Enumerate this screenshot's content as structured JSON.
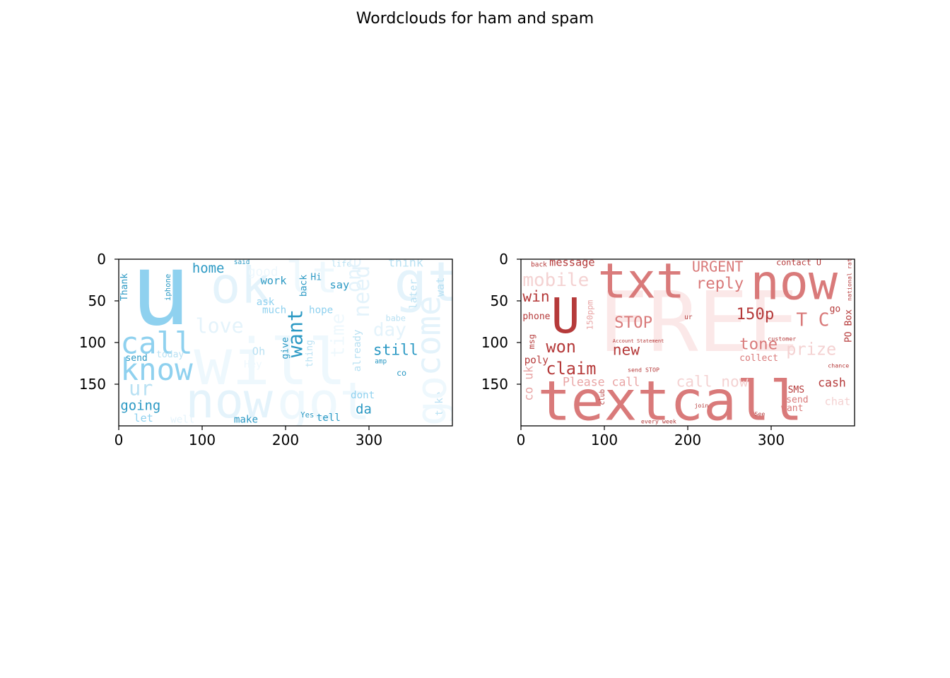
{
  "figure": {
    "title": "Wordclouds for ham and spam"
  },
  "chart_data": [
    {
      "type": "wordcloud-image",
      "name": "ham",
      "xlim": [
        0,
        400
      ],
      "ylim": [
        200,
        0
      ],
      "x_ticks": [
        0,
        100,
        200,
        300
      ],
      "y_ticks": [
        0,
        50,
        100,
        150
      ],
      "palette": [
        "#8fd1ef",
        "#5ab8dc",
        "#2b99c4",
        "#b9e1f3",
        "#e4f3fb"
      ],
      "words": [
        {
          "text": "u",
          "x": 14,
          "y": 78,
          "size": 120,
          "color": "#8fd1ef"
        },
        {
          "text": "ok",
          "x": 110,
          "y": 52,
          "size": 60,
          "color": "#e4f3fb"
        },
        {
          "text": "lt",
          "x": 200,
          "y": 40,
          "size": 52,
          "color": "#eef8fd"
        },
        {
          "text": "gt",
          "x": 330,
          "y": 50,
          "size": 66,
          "color": "#e4f3fb"
        },
        {
          "text": "call",
          "x": 2,
          "y": 113,
          "size": 36,
          "color": "#8fd1ef"
        },
        {
          "text": "know",
          "x": 2,
          "y": 145,
          "size": 36,
          "color": "#8fd1ef"
        },
        {
          "text": "ur",
          "x": 12,
          "y": 163,
          "size": 24,
          "color": "#b9e1f3"
        },
        {
          "text": "going",
          "x": 2,
          "y": 181,
          "size": 16,
          "color": "#2b99c4"
        },
        {
          "text": "let",
          "x": 18,
          "y": 195,
          "size": 13,
          "color": "#8fd1ef"
        },
        {
          "text": "will",
          "x": 90,
          "y": 150,
          "size": 76,
          "color": "#eef8fd"
        },
        {
          "text": "now",
          "x": 80,
          "y": 190,
          "size": 58,
          "color": "#e4f3fb"
        },
        {
          "text": "got",
          "x": 190,
          "y": 192,
          "size": 62,
          "color": "#eef8fd"
        },
        {
          "text": "home",
          "x": 88,
          "y": 16,
          "size": 16,
          "color": "#2b99c4"
        },
        {
          "text": "good",
          "x": 155,
          "y": 20,
          "size": 15,
          "color": "#eef8fd"
        },
        {
          "text": "work",
          "x": 170,
          "y": 30,
          "size": 13,
          "color": "#2b99c4"
        },
        {
          "text": "love",
          "x": 92,
          "y": 88,
          "size": 24,
          "color": "#e4f3fb"
        },
        {
          "text": "ask",
          "x": 165,
          "y": 55,
          "size": 12,
          "color": "#8fd1ef"
        },
        {
          "text": "much",
          "x": 172,
          "y": 65,
          "size": 12,
          "color": "#8fd1ef"
        },
        {
          "text": "hope",
          "x": 228,
          "y": 65,
          "size": 12,
          "color": "#8fd1ef"
        },
        {
          "text": "say",
          "x": 253,
          "y": 35,
          "size": 13,
          "color": "#2b99c4"
        },
        {
          "text": "Hi",
          "x": 230,
          "y": 25,
          "size": 11,
          "color": "#2b99c4"
        },
        {
          "text": "life",
          "x": 255,
          "y": 9,
          "size": 10,
          "color": "#b9e1f3"
        },
        {
          "text": "think",
          "x": 323,
          "y": 9,
          "size": 14,
          "color": "#b9e1f3"
        },
        {
          "text": "still",
          "x": 305,
          "y": 115,
          "size": 18,
          "color": "#2b99c4"
        },
        {
          "text": "day",
          "x": 305,
          "y": 92,
          "size": 22,
          "color": "#e4f3fb"
        },
        {
          "text": "babe",
          "x": 320,
          "y": 74,
          "size": 10,
          "color": "#b9e1f3"
        },
        {
          "text": "Oh",
          "x": 160,
          "y": 115,
          "size": 13,
          "color": "#b9e1f3"
        },
        {
          "text": "Hey",
          "x": 150,
          "y": 130,
          "size": 12,
          "color": "#eef8fd"
        },
        {
          "text": "send",
          "x": 8,
          "y": 122,
          "size": 11,
          "color": "#2b99c4"
        },
        {
          "text": "today",
          "x": 45,
          "y": 118,
          "size": 11,
          "color": "#b9e1f3"
        },
        {
          "text": "dont",
          "x": 278,
          "y": 167,
          "size": 12,
          "color": "#8fd1ef"
        },
        {
          "text": "da",
          "x": 284,
          "y": 185,
          "size": 16,
          "color": "#2b99c4"
        },
        {
          "text": "make",
          "x": 138,
          "y": 196,
          "size": 12,
          "color": "#2b99c4"
        },
        {
          "text": "tell",
          "x": 237,
          "y": 194,
          "size": 12,
          "color": "#2b99c4"
        },
        {
          "text": "Yes",
          "x": 218,
          "y": 190,
          "size": 9,
          "color": "#2b99c4"
        },
        {
          "text": "well",
          "x": 62,
          "y": 196,
          "size": 12,
          "color": "#e4f3fb"
        },
        {
          "text": "co",
          "x": 333,
          "y": 140,
          "size": 10,
          "color": "#2b99c4"
        },
        {
          "text": "amp",
          "x": 307,
          "y": 125,
          "size": 8,
          "color": "#2b99c4"
        },
        {
          "text": "said",
          "x": 138,
          "y": 6,
          "size": 8,
          "color": "#2b99c4"
        }
      ],
      "vertical_words": [
        {
          "text": "Thank",
          "x": 10,
          "y": 50,
          "size": 11,
          "color": "#2b99c4"
        },
        {
          "text": "iphone",
          "x": 62,
          "y": 50,
          "size": 9,
          "color": "#2b99c4"
        },
        {
          "text": "want",
          "x": 220,
          "y": 118,
          "size": 24,
          "color": "#2b99c4"
        },
        {
          "text": "give",
          "x": 203,
          "y": 120,
          "size": 11,
          "color": "#2b99c4"
        },
        {
          "text": "thing",
          "x": 232,
          "y": 130,
          "size": 11,
          "color": "#b9e1f3"
        },
        {
          "text": "back",
          "x": 225,
          "y": 45,
          "size": 11,
          "color": "#2b99c4"
        },
        {
          "text": "already",
          "x": 290,
          "y": 135,
          "size": 12,
          "color": "#b9e1f3"
        },
        {
          "text": "later",
          "x": 357,
          "y": 60,
          "size": 12,
          "color": "#b9e1f3"
        },
        {
          "text": "wat",
          "x": 390,
          "y": 45,
          "size": 13,
          "color": "#b9e1f3"
        },
        {
          "text": "take",
          "x": 388,
          "y": 188,
          "size": 12,
          "color": "#b9e1f3"
        },
        {
          "text": "time",
          "x": 270,
          "y": 118,
          "size": 22,
          "color": "#eef8fd"
        },
        {
          "text": "need",
          "x": 300,
          "y": 70,
          "size": 26,
          "color": "#e4f3fb"
        },
        {
          "text": "one",
          "x": 290,
          "y": 40,
          "size": 24,
          "color": "#e4f3fb"
        },
        {
          "text": "come",
          "x": 385,
          "y": 140,
          "size": 40,
          "color": "#e4f3fb"
        },
        {
          "text": "go",
          "x": 392,
          "y": 200,
          "size": 50,
          "color": "#eef8fd"
        }
      ]
    },
    {
      "type": "wordcloud-image",
      "name": "spam",
      "xlim": [
        0,
        400
      ],
      "ylim": [
        200,
        0
      ],
      "x_ticks": [
        0,
        100,
        200,
        300
      ],
      "y_ticks": [
        0,
        50,
        100,
        150
      ],
      "palette": [
        "#d97a7a",
        "#b53a3a",
        "#e9a5a5",
        "#f4d2d2",
        "#fbe8e8"
      ],
      "words": [
        {
          "text": "FREE",
          "x": 92,
          "y": 110,
          "size": 100,
          "color": "#fbe8e8"
        },
        {
          "text": "txt",
          "x": 92,
          "y": 46,
          "size": 58,
          "color": "#d97a7a"
        },
        {
          "text": "now",
          "x": 275,
          "y": 48,
          "size": 58,
          "color": "#d97a7a"
        },
        {
          "text": "U",
          "x": 36,
          "y": 88,
          "size": 58,
          "color": "#b53a3a"
        },
        {
          "text": "textcall",
          "x": 20,
          "y": 193,
          "size": 66,
          "color": "#d97a7a"
        },
        {
          "text": "message",
          "x": 34,
          "y": 8,
          "size": 13,
          "color": "#b53a3a"
        },
        {
          "text": "mobile",
          "x": 2,
          "y": 32,
          "size": 22,
          "color": "#f4d2d2"
        },
        {
          "text": "URGENT",
          "x": 205,
          "y": 15,
          "size": 17,
          "color": "#d97a7a"
        },
        {
          "text": "contact U",
          "x": 306,
          "y": 7,
          "size": 10,
          "color": "#b53a3a"
        },
        {
          "text": "reply",
          "x": 210,
          "y": 35,
          "size": 19,
          "color": "#d97a7a"
        },
        {
          "text": "win",
          "x": 2,
          "y": 51,
          "size": 18,
          "color": "#b53a3a"
        },
        {
          "text": "phone",
          "x": 2,
          "y": 72,
          "size": 11,
          "color": "#b53a3a"
        },
        {
          "text": "STOP",
          "x": 112,
          "y": 82,
          "size": 19,
          "color": "#d97a7a"
        },
        {
          "text": "150p",
          "x": 258,
          "y": 72,
          "size": 19,
          "color": "#b53a3a"
        },
        {
          "text": "T C",
          "x": 330,
          "y": 80,
          "size": 22,
          "color": "#d97a7a"
        },
        {
          "text": "won",
          "x": 30,
          "y": 112,
          "size": 20,
          "color": "#b53a3a"
        },
        {
          "text": "new",
          "x": 110,
          "y": 115,
          "size": 18,
          "color": "#b53a3a"
        },
        {
          "text": "tone",
          "x": 262,
          "y": 108,
          "size": 19,
          "color": "#d97a7a"
        },
        {
          "text": "prize",
          "x": 318,
          "y": 115,
          "size": 20,
          "color": "#f4d2d2"
        },
        {
          "text": "poly",
          "x": 4,
          "y": 125,
          "size": 12,
          "color": "#b53a3a"
        },
        {
          "text": "claim",
          "x": 30,
          "y": 138,
          "size": 20,
          "color": "#b53a3a"
        },
        {
          "text": "collect",
          "x": 262,
          "y": 122,
          "size": 11,
          "color": "#d97a7a"
        },
        {
          "text": "Please call",
          "x": 50,
          "y": 152,
          "size": 14,
          "color": "#e9a5a5"
        },
        {
          "text": "call now",
          "x": 186,
          "y": 153,
          "size": 18,
          "color": "#f4d2d2"
        },
        {
          "text": "cash",
          "x": 356,
          "y": 153,
          "size": 14,
          "color": "#b53a3a"
        },
        {
          "text": "SMS",
          "x": 320,
          "y": 160,
          "size": 11,
          "color": "#b53a3a"
        },
        {
          "text": "send",
          "x": 318,
          "y": 172,
          "size": 11,
          "color": "#d97a7a"
        },
        {
          "text": "want",
          "x": 312,
          "y": 182,
          "size": 11,
          "color": "#d97a7a"
        },
        {
          "text": "chat",
          "x": 364,
          "y": 175,
          "size": 13,
          "color": "#f4d2d2"
        },
        {
          "text": "go",
          "x": 370,
          "y": 63,
          "size": 11,
          "color": "#b53a3a"
        },
        {
          "text": "back",
          "x": 12,
          "y": 9,
          "size": 8,
          "color": "#b53a3a"
        },
        {
          "text": "every week",
          "x": 144,
          "y": 197,
          "size": 7,
          "color": "#b53a3a"
        },
        {
          "text": "join",
          "x": 208,
          "y": 178,
          "size": 7,
          "color": "#b53a3a"
        },
        {
          "text": "See",
          "x": 280,
          "y": 188,
          "size": 7,
          "color": "#b53a3a"
        },
        {
          "text": "chance",
          "x": 368,
          "y": 130,
          "size": 7,
          "color": "#b53a3a"
        },
        {
          "text": "customer",
          "x": 296,
          "y": 98,
          "size": 7,
          "color": "#b53a3a"
        },
        {
          "text": "ur",
          "x": 196,
          "y": 72,
          "size": 8,
          "color": "#b53a3a"
        },
        {
          "text": "send STOP",
          "x": 128,
          "y": 135,
          "size": 7,
          "color": "#b53a3a"
        },
        {
          "text": "Account Statement",
          "x": 110,
          "y": 100,
          "size": 6,
          "color": "#b53a3a"
        }
      ],
      "vertical_words": [
        {
          "text": "PO Box",
          "x": 396,
          "y": 100,
          "size": 11,
          "color": "#b53a3a"
        },
        {
          "text": "150ppm",
          "x": 86,
          "y": 85,
          "size": 10,
          "color": "#e9a5a5"
        },
        {
          "text": "co uk",
          "x": 14,
          "y": 170,
          "size": 14,
          "color": "#e9a5a5"
        },
        {
          "text": "msg",
          "x": 16,
          "y": 108,
          "size": 10,
          "color": "#b53a3a"
        },
        {
          "text": "national rate",
          "x": 396,
          "y": 50,
          "size": 7,
          "color": "#b53a3a"
        },
        {
          "text": "club",
          "x": 100,
          "y": 175,
          "size": 8,
          "color": "#b53a3a"
        }
      ]
    }
  ]
}
